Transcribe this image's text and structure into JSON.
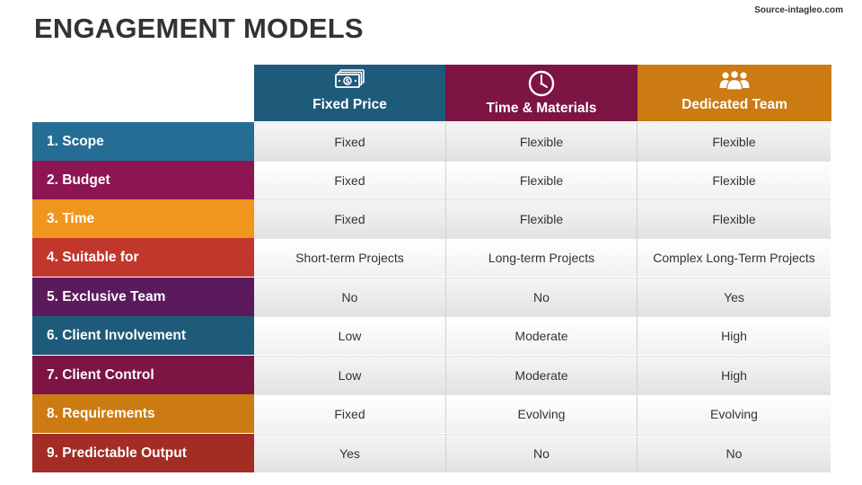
{
  "title": "ENGAGEMENT MODELS",
  "source": "Source-intagleo.com",
  "columns": [
    {
      "label": "Fixed Price",
      "icon": "money-icon",
      "color": "#1e5a7a"
    },
    {
      "label": "Time & Materials",
      "icon": "clock-icon",
      "color": "#7c1444"
    },
    {
      "label": "Dedicated Team",
      "icon": "team-icon",
      "color": "#cc7a12"
    }
  ],
  "rows": [
    {
      "label": "1. Scope",
      "color": "#256d94",
      "values": [
        "Fixed",
        "Flexible",
        "Flexible"
      ]
    },
    {
      "label": "2. Budget",
      "color": "#8c1552",
      "values": [
        "Fixed",
        "Flexible",
        "Flexible"
      ]
    },
    {
      "label": "3. Time",
      "color": "#f0961e",
      "values": [
        "Fixed",
        "Flexible",
        "Flexible"
      ]
    },
    {
      "label": "4. Suitable for",
      "color": "#c1372c",
      "values": [
        "Short-term Projects",
        "Long-term Projects",
        "Complex Long-Term Projects"
      ]
    },
    {
      "label": "5. Exclusive Team",
      "color": "#5a1a5c",
      "values": [
        "No",
        "No",
        "Yes"
      ]
    },
    {
      "label": "6. Client Involvement",
      "color": "#1e5a7a",
      "values": [
        "Low",
        "Moderate",
        "High"
      ]
    },
    {
      "label": "7. Client Control",
      "color": "#7c1444",
      "values": [
        "Low",
        "Moderate",
        "High"
      ]
    },
    {
      "label": "8. Requirements",
      "color": "#cc7a12",
      "values": [
        "Fixed",
        "Evolving",
        "Evolving"
      ]
    },
    {
      "label": "9. Predictable Output",
      "color": "#a32c25",
      "values": [
        "Yes",
        "No",
        "No"
      ]
    }
  ]
}
